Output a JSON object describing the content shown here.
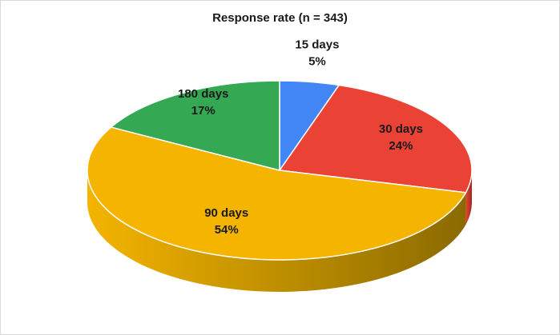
{
  "chart_data": {
    "type": "pie",
    "title": "Response rate (n = 343)",
    "slices": [
      {
        "label": "15 days",
        "value": 5,
        "value_label": "5%",
        "color": "#4285F4",
        "side_color": "#2a5bb0"
      },
      {
        "label": "30 days",
        "value": 24,
        "value_label": "24%",
        "color": "#EA4335",
        "side_color": "#9c2a20"
      },
      {
        "label": "90 days",
        "value": 54,
        "value_label": "54%",
        "color": "#F4B400",
        "side_color": "#8a6a00"
      },
      {
        "label": "180 days",
        "value": 17,
        "value_label": "17%",
        "color": "#34A853",
        "side_color": "#1f6a33"
      }
    ],
    "start": "top",
    "direction": "clockwise",
    "style": "3d"
  }
}
